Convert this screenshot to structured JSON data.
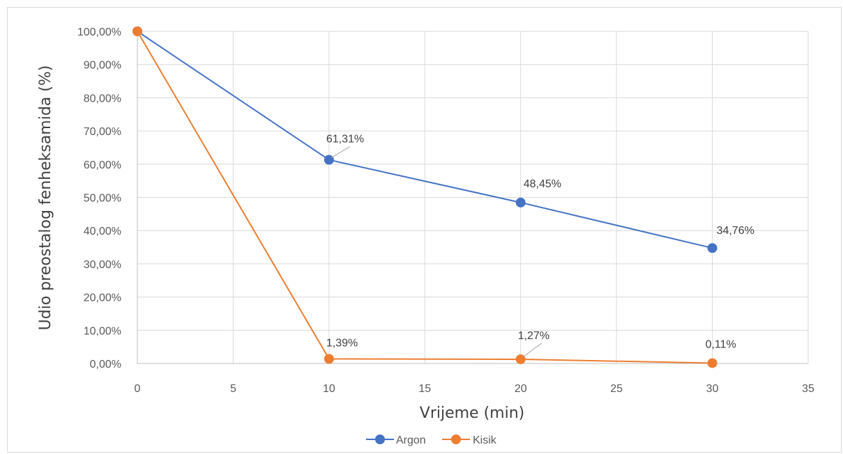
{
  "chart_data": {
    "type": "scatter",
    "xlabel": "Vrijeme (min)",
    "ylabel": "Udio preostalog fenheksamida (%)",
    "xlim": [
      0,
      35
    ],
    "ylim": [
      0,
      100
    ],
    "x_ticks": [
      "0",
      "5",
      "10",
      "15",
      "20",
      "25",
      "30",
      "35"
    ],
    "y_ticks": [
      "0,00%",
      "10,00%",
      "20,00%",
      "30,00%",
      "40,00%",
      "50,00%",
      "60,00%",
      "70,00%",
      "80,00%",
      "90,00%",
      "100,00%"
    ],
    "grid": true,
    "legend_position": "bottom",
    "series": [
      {
        "name": "Argon",
        "color": "#4472c4",
        "x": [
          0,
          10,
          20,
          30
        ],
        "y": [
          100,
          61.31,
          48.45,
          34.76
        ],
        "labels": [
          "",
          "61,31%",
          "48,45%",
          "34,76%"
        ]
      },
      {
        "name": "Kisik",
        "color": "#ed7d31",
        "x": [
          0,
          10,
          20,
          30
        ],
        "y": [
          100,
          1.39,
          1.27,
          0.11
        ],
        "labels": [
          "",
          "1,39%",
          "1,27%",
          "0,11%"
        ]
      }
    ]
  }
}
